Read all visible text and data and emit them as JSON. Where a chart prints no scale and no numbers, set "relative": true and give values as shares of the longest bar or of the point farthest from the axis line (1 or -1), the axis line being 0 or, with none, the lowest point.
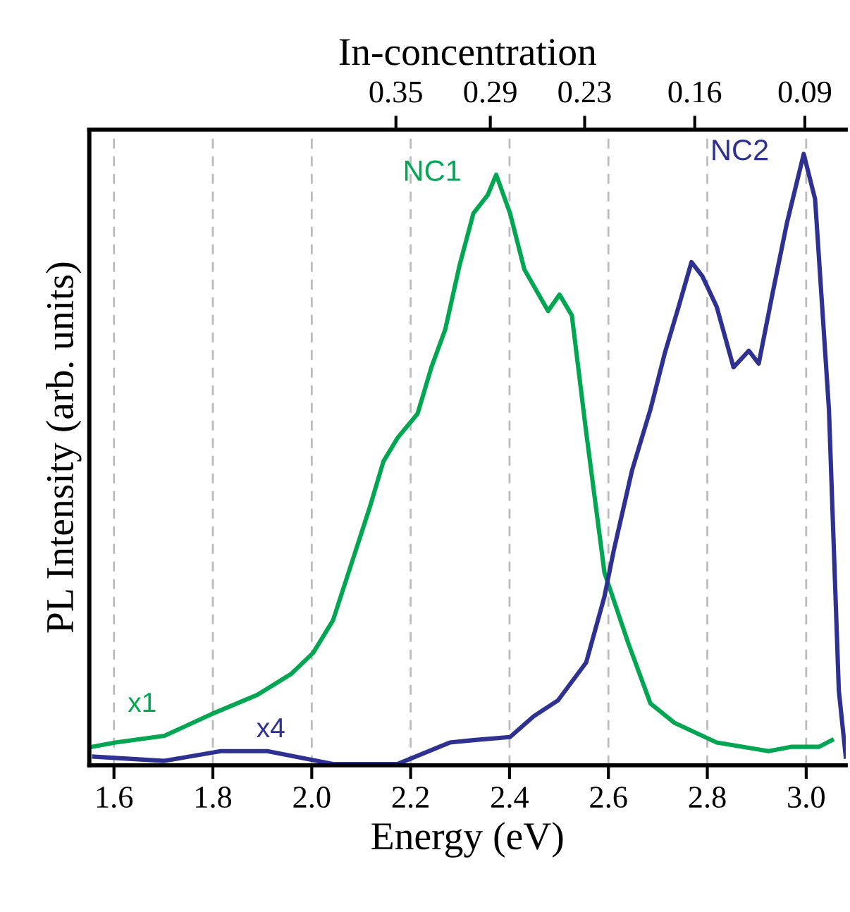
{
  "chart_data": {
    "type": "line",
    "relative": true,
    "xlabel": "Energy (eV)",
    "ylabel": "PL Intensity (arb. units)",
    "x2label": "In-concentration",
    "xlim": [
      1.55,
      3.08
    ],
    "xticks": [
      1.6,
      1.8,
      {
        "value": 2,
        "label": "2.0"
      },
      2.2,
      2.4,
      2.6,
      2.8,
      {
        "value": 3,
        "label": "3.0"
      }
    ],
    "x2lim": [
      0.545,
      0.064
    ],
    "x2ticks": [
      0.35,
      0.29,
      0.23,
      0.16,
      0.09
    ],
    "grid": "x",
    "tick_labels": "x",
    "legend": false,
    "series": [
      {
        "name": "NC1",
        "color": "#00a651",
        "x": [
          1.555,
          1.603,
          1.702,
          1.796,
          1.89,
          1.958,
          2.003,
          2.043,
          2.08,
          2.117,
          2.145,
          2.174,
          2.214,
          2.242,
          2.27,
          2.299,
          2.327,
          2.356,
          2.373,
          2.401,
          2.43,
          2.478,
          2.501,
          2.526,
          2.555,
          2.592,
          2.64,
          2.685,
          2.734,
          2.819,
          2.924,
          2.969,
          3.026,
          3.052
        ],
        "values": [
          0.03,
          0.037,
          0.048,
          0.083,
          0.115,
          0.149,
          0.184,
          0.237,
          0.329,
          0.421,
          0.497,
          0.536,
          0.575,
          0.651,
          0.713,
          0.818,
          0.903,
          0.933,
          0.966,
          0.903,
          0.811,
          0.743,
          0.77,
          0.736,
          0.545,
          0.315,
          0.2,
          0.101,
          0.069,
          0.037,
          0.023,
          0.03,
          0.03,
          0.041
        ]
      },
      {
        "name": "NC2",
        "color": "#2e3192",
        "x": [
          1.56,
          1.702,
          1.816,
          1.91,
          2.043,
          2.174,
          2.279,
          2.327,
          2.401,
          2.449,
          2.498,
          2.555,
          2.592,
          2.611,
          2.648,
          2.685,
          2.714,
          2.742,
          2.768,
          2.79,
          2.819,
          2.853,
          2.884,
          2.904,
          2.932,
          2.961,
          2.995,
          3.018,
          3.046,
          3.066,
          3.08
        ],
        "values": [
          0.014,
          0.007,
          0.023,
          0.023,
          0.002,
          0.002,
          0.037,
          0.041,
          0.046,
          0.08,
          0.106,
          0.168,
          0.276,
          0.352,
          0.483,
          0.582,
          0.674,
          0.75,
          0.823,
          0.8,
          0.75,
          0.651,
          0.678,
          0.657,
          0.772,
          0.887,
          1.0,
          0.926,
          0.582,
          0.122,
          0.014
        ]
      }
    ],
    "annotations": [
      "x1",
      "x4"
    ]
  }
}
